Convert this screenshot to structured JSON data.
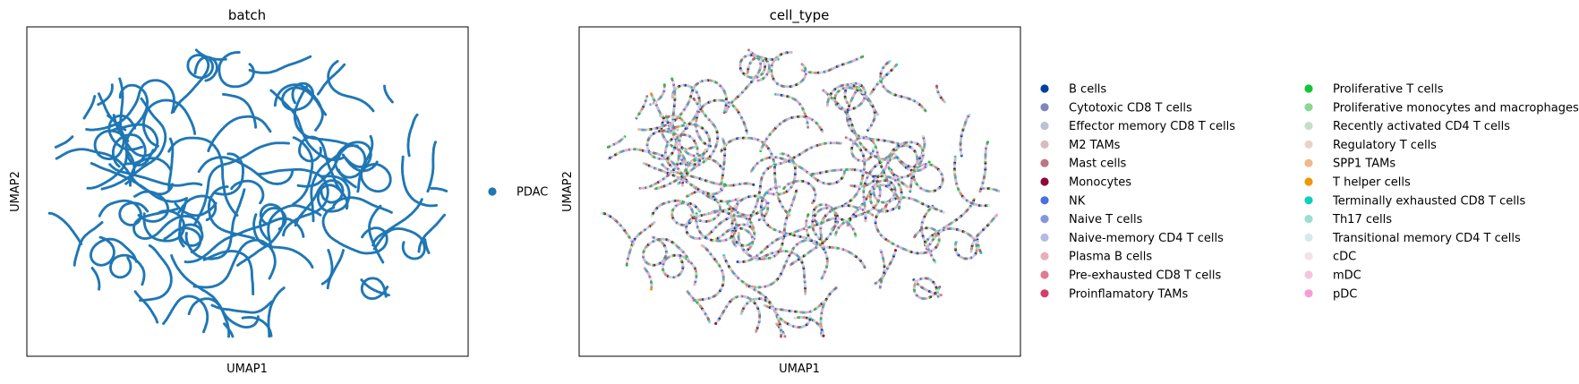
{
  "chart_data": [
    {
      "type": "scatter",
      "title": "batch",
      "xlabel": "UMAP1",
      "ylabel": "UMAP2",
      "grid": false,
      "legend": {
        "placement": "right",
        "entries": [
          {
            "label": "PDAC",
            "color": "#1f77b4"
          }
        ]
      }
    },
    {
      "type": "scatter",
      "title": "cell_type",
      "xlabel": "UMAP1",
      "ylabel": "UMAP2",
      "grid": false,
      "legend": {
        "placement": "right",
        "columns": 2,
        "entries": [
          {
            "label": "B cells",
            "color": "#023fa5"
          },
          {
            "label": "Cytotoxic CD8 T cells",
            "color": "#7d87b9"
          },
          {
            "label": "Effector memory CD8 T cells",
            "color": "#bec1d4"
          },
          {
            "label": "M2 TAMs",
            "color": "#d6bcc0"
          },
          {
            "label": "Mast cells",
            "color": "#bb7784"
          },
          {
            "label": "Monocytes",
            "color": "#8e063b"
          },
          {
            "label": "NK",
            "color": "#4a6fe3"
          },
          {
            "label": "Naive T cells",
            "color": "#8595e1"
          },
          {
            "label": "Naive-memory CD4 T cells",
            "color": "#b5bbe3"
          },
          {
            "label": "Plasma B cells",
            "color": "#e6afb9"
          },
          {
            "label": "Pre-exhausted CD8 T cells",
            "color": "#e07b91"
          },
          {
            "label": "Proinflamatory TAMs",
            "color": "#d33f6a"
          },
          {
            "label": "Proliferative T cells",
            "color": "#11c638"
          },
          {
            "label": "Proliferative monocytes and macrophages",
            "color": "#8dd593"
          },
          {
            "label": "Recently activated CD4 T cells",
            "color": "#c6dec7"
          },
          {
            "label": "Regulatory T cells",
            "color": "#ead3c6"
          },
          {
            "label": "SPP1 TAMs",
            "color": "#f0b98d"
          },
          {
            "label": "T helper cells",
            "color": "#ef9708"
          },
          {
            "label": "Terminally exhausted CD8 T cells",
            "color": "#0fcfc0"
          },
          {
            "label": "Th17 cells",
            "color": "#9cded6"
          },
          {
            "label": "Transitional memory CD4 T cells",
            "color": "#d5eae7"
          },
          {
            "label": "cDC",
            "color": "#f3e1eb"
          },
          {
            "label": "mDC",
            "color": "#f6c4e1"
          },
          {
            "label": "pDC",
            "color": "#f79cd4"
          }
        ]
      }
    }
  ]
}
